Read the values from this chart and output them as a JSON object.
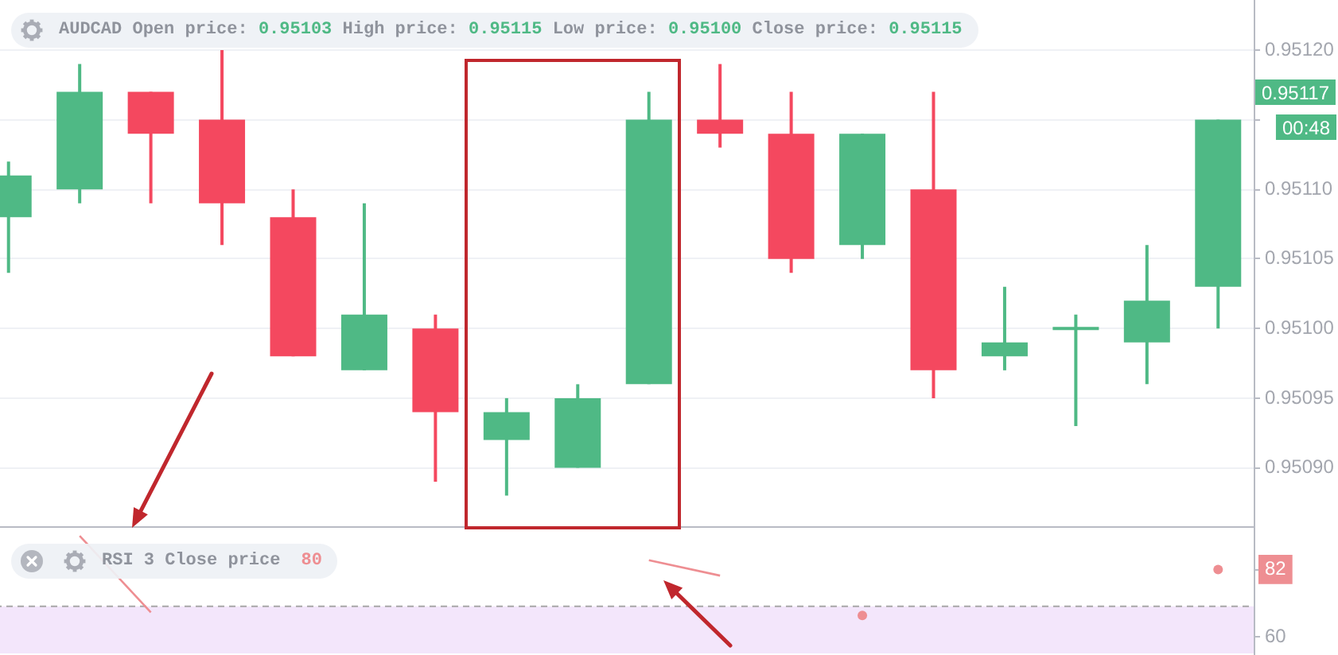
{
  "chart_data": [
    {
      "type": "candlestick",
      "title": "AUDCAD Open price: 0.95103 High price: 0.95115 Low price: 0.95100 Close price: 0.95115",
      "categories": [
        null,
        null,
        null,
        null,
        null,
        null,
        null,
        null,
        null,
        null,
        null,
        null,
        null,
        null,
        null,
        null,
        null,
        null
      ],
      "ohlc": [
        [
          0.95108,
          0.95112,
          0.95104,
          0.95111
        ],
        [
          0.9511,
          0.95119,
          0.95109,
          0.95117
        ],
        [
          0.95117,
          0.95117,
          0.95109,
          0.95114
        ],
        [
          0.95115,
          0.9512,
          0.95106,
          0.95109
        ],
        [
          0.95108,
          0.9511,
          0.95098,
          0.95098
        ],
        [
          0.95097,
          0.95109,
          0.95097,
          0.95101
        ],
        [
          0.951,
          0.95101,
          0.95089,
          0.95094
        ],
        [
          0.95092,
          0.95095,
          0.95088,
          0.95094
        ],
        [
          0.9509,
          0.95096,
          0.9509,
          0.95095
        ],
        [
          0.95096,
          0.95117,
          0.95096,
          0.95115
        ],
        [
          0.95115,
          0.95119,
          0.95113,
          0.95114
        ],
        [
          0.95114,
          0.95117,
          0.95104,
          0.95105
        ],
        [
          0.95106,
          0.95114,
          0.95105,
          0.95114
        ],
        [
          0.9511,
          0.95117,
          0.95095,
          0.95097
        ],
        [
          0.95098,
          0.95103,
          0.95097,
          0.95099
        ],
        [
          0.951,
          0.95101,
          0.95093,
          0.951
        ],
        [
          0.95099,
          0.95106,
          0.95096,
          0.95102
        ],
        [
          0.95103,
          0.95115,
          0.951,
          0.95115
        ]
      ],
      "colors": [
        "#4fb985",
        "#4fb985",
        "#f4485f",
        "#f4485f",
        "#f4485f",
        "#4fb985",
        "#f4485f",
        "#4fb985",
        "#4fb985",
        "#4fb985",
        "#f4485f",
        "#f4485f",
        "#4fb985",
        "#f4485f",
        "#4fb985",
        "#4fb985",
        "#4fb985",
        "#4fb985"
      ],
      "ylim": [
        0.950858,
        0.951236
      ],
      "yticks": [
        {
          "value": 0.9509,
          "label": "0.95090"
        },
        0.95095,
        {
          "value": 0.951,
          "label": "0.95100"
        },
        0.95105,
        {
          "value": 0.9511,
          "label": "0.95110"
        },
        {
          "value": 0.95115,
          "label": null
        },
        {
          "value": 0.9512,
          "label": "0.95120"
        }
      ],
      "tick_labels": "y",
      "grid": "y",
      "annotations": [
        "0.95117",
        "00:48"
      ]
    },
    {
      "type": "line",
      "title": "RSI 3 Close price",
      "subtitle": "80",
      "categories": [
        null,
        null,
        null,
        null,
        null,
        null,
        null,
        null,
        null,
        null,
        null,
        null,
        null,
        null,
        null,
        null,
        null,
        null
      ],
      "series": [
        {
          "color": "#ee8e92",
          "values": [
            null,
            93,
            68,
            null,
            null,
            null,
            null,
            null,
            null,
            85,
            80,
            null,
            67,
            null,
            null,
            null,
            null,
            82
          ]
        }
      ],
      "ylim": [
        54.6,
        95.6
      ],
      "yticks": [
        60,
        82
      ],
      "tick_labels": "y",
      "marker": "none",
      "ref_lines": [
        {
          "axis": "y",
          "value": 70,
          "color": "#a8a8a8",
          "line_style": "dashed"
        }
      ],
      "bands": [
        {
          "axis": "y",
          "from": 54.6,
          "to": 70,
          "color": "#f3e6fb"
        }
      ]
    }
  ]
}
